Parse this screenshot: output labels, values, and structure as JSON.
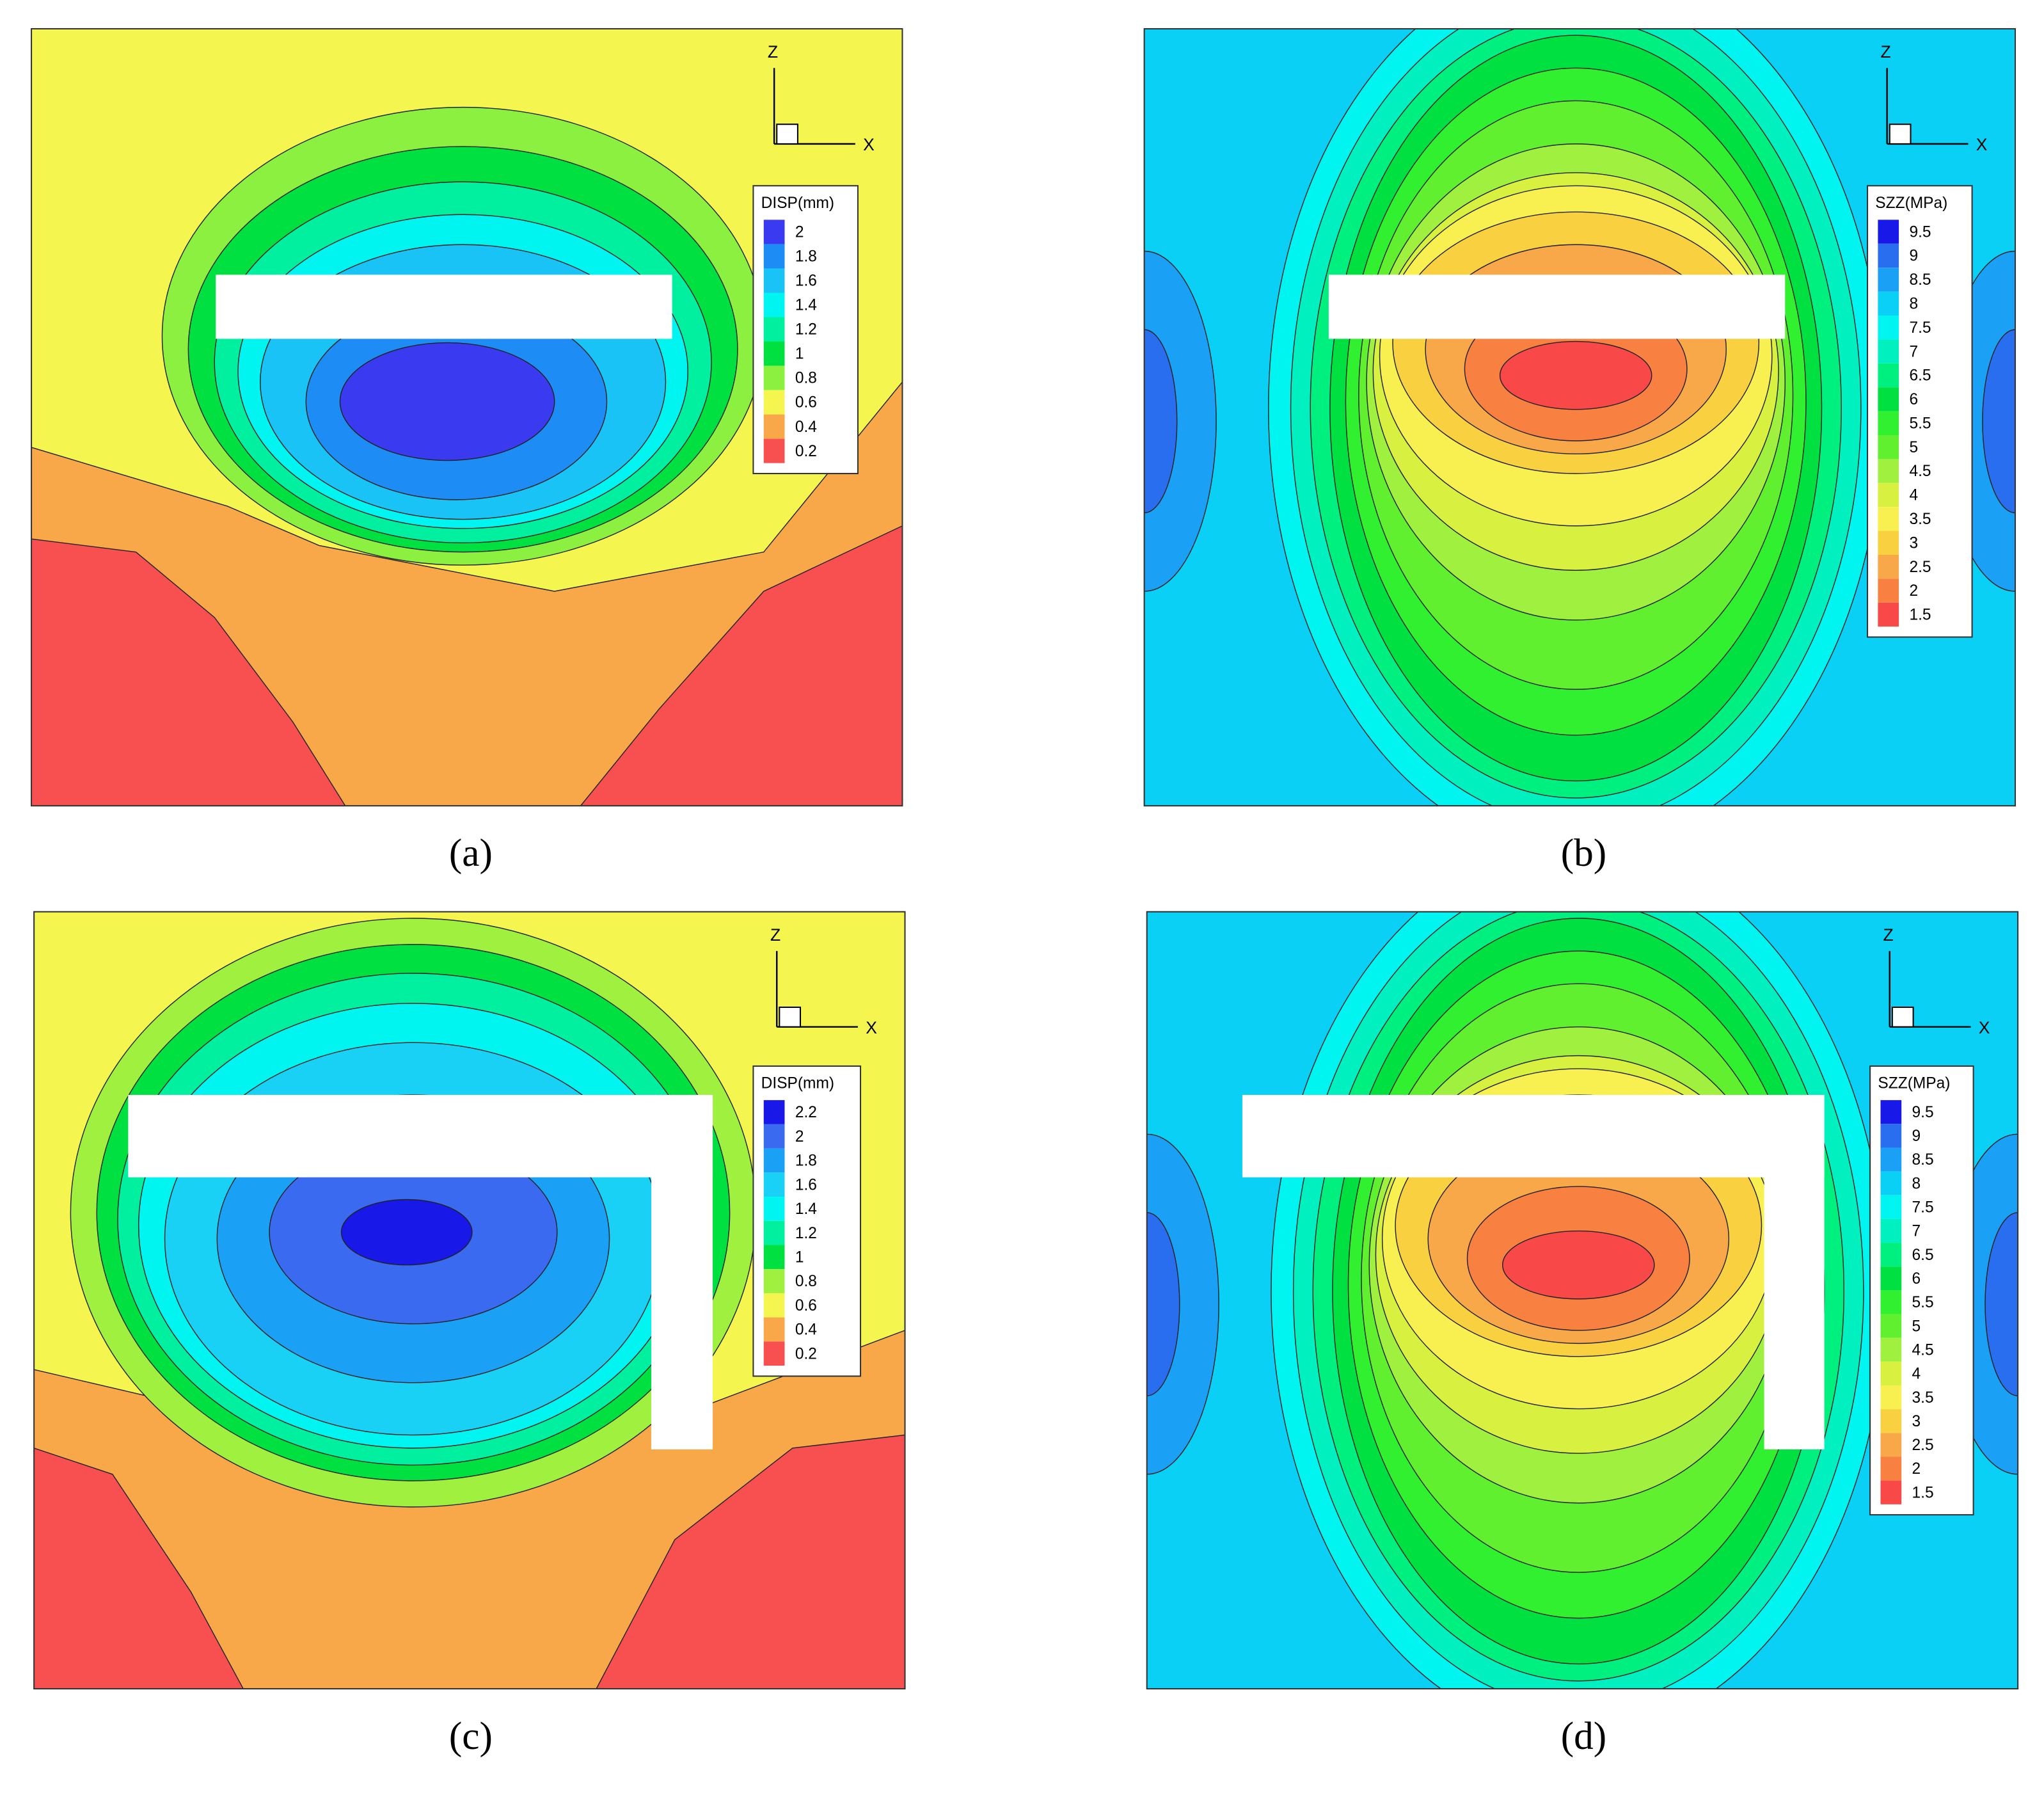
{
  "panels": [
    {
      "caption": "(a)",
      "legend_title": "DISP(mm)",
      "levels": [
        2,
        1.8,
        1.6,
        1.4,
        1.2,
        1,
        0.8,
        0.6,
        0.4,
        0.2
      ],
      "colors": [
        "#3a3af0",
        "#1e8cf5",
        "#19c3f5",
        "#00f5f0",
        "#00f0a0",
        "#00e040",
        "#8cf040",
        "#f5f550",
        "#f8a848",
        "#f85050"
      ],
      "axis_labels": {
        "z": "Z",
        "x": "X"
      }
    },
    {
      "caption": "(b)",
      "legend_title": "SZZ(MPa)",
      "levels": [
        9.5,
        9,
        8.5,
        8,
        7.5,
        7,
        6.5,
        6,
        5.5,
        5,
        4.5,
        4,
        3.5,
        3,
        2.5,
        2,
        1.5
      ],
      "colors": [
        "#1818e8",
        "#2a6ef0",
        "#1aa0f5",
        "#0ad0f5",
        "#00f5f0",
        "#00f0c0",
        "#00f080",
        "#00e040",
        "#30f030",
        "#60f030",
        "#a0f040",
        "#d8f040",
        "#f8f050",
        "#f8d040",
        "#f8a848",
        "#f88040",
        "#f84848"
      ],
      "axis_labels": {
        "z": "Z",
        "x": "X"
      }
    },
    {
      "caption": "(c)",
      "legend_title": "DISP(mm)",
      "levels": [
        2.2,
        2,
        1.8,
        1.6,
        1.4,
        1.2,
        1,
        0.8,
        0.6,
        0.4,
        0.2
      ],
      "colors": [
        "#1818e8",
        "#3a6af0",
        "#1aa0f5",
        "#19d0f5",
        "#00f5f0",
        "#00f0a0",
        "#00e040",
        "#a0f040",
        "#f5f550",
        "#f8a848",
        "#f85050"
      ],
      "axis_labels": {
        "z": "Z",
        "x": "X"
      }
    },
    {
      "caption": "(d)",
      "legend_title": "SZZ(MPa)",
      "levels": [
        9.5,
        9,
        8.5,
        8,
        7.5,
        7,
        6.5,
        6,
        5.5,
        5,
        4.5,
        4,
        3.5,
        3,
        2.5,
        2,
        1.5
      ],
      "colors": [
        "#1818e8",
        "#2a6ef0",
        "#1aa0f5",
        "#0ad0f5",
        "#00f5f0",
        "#00f0c0",
        "#00f080",
        "#00e040",
        "#30f030",
        "#60f030",
        "#a0f040",
        "#d8f040",
        "#f8f050",
        "#f8d040",
        "#f8a848",
        "#f88040",
        "#f84848"
      ],
      "axis_labels": {
        "z": "Z",
        "x": "X"
      }
    }
  ]
}
